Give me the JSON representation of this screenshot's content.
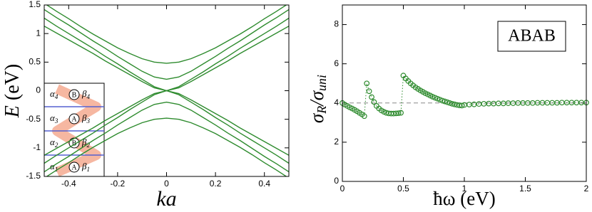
{
  "chart_data": [
    {
      "type": "line",
      "xlabel": "ka",
      "ylabel_parts": [
        "E",
        " (eV)"
      ],
      "x": [
        -0.5,
        -0.45,
        -0.4,
        -0.35,
        -0.3,
        -0.25,
        -0.2,
        -0.15,
        -0.1,
        -0.05,
        0,
        0.05,
        0.1,
        0.15,
        0.2,
        0.25,
        0.3,
        0.35,
        0.4,
        0.45,
        0.5
      ],
      "series": [
        {
          "color": "#2e8b2e",
          "values": [
            1.53,
            1.39,
            1.26,
            1.12,
            0.99,
            0.87,
            0.75,
            0.65,
            0.56,
            0.5,
            0.48,
            0.5,
            0.56,
            0.65,
            0.75,
            0.87,
            0.99,
            1.12,
            1.26,
            1.39,
            1.53
          ]
        },
        {
          "color": "#2e8b2e",
          "values": [
            1.42,
            1.28,
            1.15,
            1.01,
            0.87,
            0.74,
            0.6,
            0.47,
            0.34,
            0.24,
            0.2,
            0.24,
            0.34,
            0.47,
            0.6,
            0.74,
            0.87,
            1.01,
            1.15,
            1.28,
            1.42
          ]
        },
        {
          "color": "#2e8b2e",
          "values": [
            1.27,
            1.13,
            1.0,
            0.87,
            0.74,
            0.6,
            0.47,
            0.33,
            0.2,
            0.07,
            0,
            0.07,
            0.2,
            0.33,
            0.47,
            0.6,
            0.74,
            0.87,
            1.0,
            1.13,
            1.27
          ]
        },
        {
          "color": "#2e8b2e",
          "values": [
            1.13,
            1.01,
            0.89,
            0.77,
            0.65,
            0.52,
            0.4,
            0.28,
            0.16,
            0.05,
            0,
            0.05,
            0.16,
            0.28,
            0.4,
            0.52,
            0.65,
            0.77,
            0.89,
            1.01,
            1.13
          ]
        },
        {
          "color": "#2e8b2e",
          "values": [
            -1.13,
            -1.01,
            -0.89,
            -0.77,
            -0.65,
            -0.52,
            -0.4,
            -0.28,
            -0.16,
            -0.05,
            0,
            -0.05,
            -0.16,
            -0.28,
            -0.4,
            -0.52,
            -0.65,
            -0.77,
            -0.89,
            -1.01,
            -1.13
          ]
        },
        {
          "color": "#2e8b2e",
          "values": [
            -1.27,
            -1.13,
            -1.0,
            -0.87,
            -0.74,
            -0.6,
            -0.47,
            -0.33,
            -0.2,
            -0.07,
            0,
            -0.07,
            -0.2,
            -0.33,
            -0.47,
            -0.6,
            -0.74,
            -0.87,
            -1.0,
            -1.13,
            -1.27
          ]
        },
        {
          "color": "#2e8b2e",
          "values": [
            -1.42,
            -1.28,
            -1.15,
            -1.01,
            -0.87,
            -0.74,
            -0.6,
            -0.47,
            -0.34,
            -0.24,
            -0.2,
            -0.24,
            -0.34,
            -0.47,
            -0.6,
            -0.74,
            -0.87,
            -1.01,
            -1.15,
            -1.28,
            -1.42
          ]
        },
        {
          "color": "#2e8b2e",
          "values": [
            -1.53,
            -1.39,
            -1.26,
            -1.12,
            -0.99,
            -0.87,
            -0.75,
            -0.65,
            -0.56,
            -0.5,
            -0.48,
            -0.5,
            -0.56,
            -0.65,
            -0.75,
            -0.87,
            -0.99,
            -1.12,
            -1.26,
            -1.39,
            -1.53
          ]
        }
      ],
      "xlim": [
        -0.5,
        0.5
      ],
      "xticks": [
        -0.4,
        -0.2,
        0,
        0.2,
        0.4
      ],
      "ylim": [
        -1.5,
        1.5
      ],
      "yticks": [
        -1.5,
        -1,
        -0.5,
        0,
        0.5,
        1,
        1.5
      ],
      "inset": [
        {
          "left": "α",
          "left_sub": "4",
          "atom": "B",
          "right": "β",
          "right_sub": "4"
        },
        {
          "left": "α",
          "left_sub": "3",
          "atom": "A",
          "right": "β",
          "right_sub": "3"
        },
        {
          "left": "α",
          "left_sub": "2",
          "atom": "B",
          "right": "β",
          "right_sub": "2"
        },
        {
          "left": "α",
          "left_sub": "1",
          "atom": "A",
          "right": "β",
          "right_sub": "1"
        }
      ]
    },
    {
      "type": "scatter",
      "xlabel": "ħω (eV)",
      "ylabel_parts": [
        "σ",
        "R",
        "/σ",
        "uni"
      ],
      "annotation": "ABAB",
      "reference_line": 4,
      "color": "#2e8b2e",
      "x": [
        0,
        0.02,
        0.04,
        0.06,
        0.08,
        0.1,
        0.12,
        0.14,
        0.16,
        0.18,
        0.2,
        0.22,
        0.24,
        0.26,
        0.28,
        0.3,
        0.32,
        0.34,
        0.36,
        0.38,
        0.4,
        0.42,
        0.44,
        0.46,
        0.48,
        0.5,
        0.52,
        0.54,
        0.56,
        0.58,
        0.6,
        0.62,
        0.64,
        0.66,
        0.68,
        0.7,
        0.72,
        0.74,
        0.76,
        0.78,
        0.8,
        0.82,
        0.84,
        0.86,
        0.88,
        0.9,
        0.92,
        0.94,
        0.96,
        0.98,
        1.0,
        1.04,
        1.08,
        1.12,
        1.16,
        1.2,
        1.24,
        1.28,
        1.32,
        1.36,
        1.4,
        1.44,
        1.48,
        1.52,
        1.56,
        1.6,
        1.64,
        1.68,
        1.72,
        1.76,
        1.8,
        1.84,
        1.88,
        1.92,
        1.96,
        2.0
      ],
      "values": [
        4.0,
        3.92,
        3.85,
        3.78,
        3.72,
        3.65,
        3.58,
        3.5,
        3.42,
        3.33,
        5.0,
        4.6,
        4.3,
        4.05,
        3.85,
        3.72,
        3.62,
        3.55,
        3.5,
        3.47,
        3.46,
        3.46,
        3.47,
        3.48,
        3.5,
        5.4,
        5.25,
        5.12,
        5.0,
        4.9,
        4.8,
        4.72,
        4.64,
        4.57,
        4.5,
        4.44,
        4.38,
        4.32,
        4.27,
        4.22,
        4.17,
        4.12,
        4.08,
        4.04,
        4.0,
        3.96,
        3.93,
        3.9,
        3.88,
        3.87,
        3.9,
        3.92,
        3.93,
        3.95,
        3.96,
        3.97,
        3.97,
        3.98,
        3.98,
        3.99,
        3.99,
        4.0,
        4.0,
        4.0,
        4.0,
        4.01,
        4.01,
        4.01,
        4.01,
        4.01,
        4.02,
        4.02,
        4.02,
        4.02,
        4.02,
        4.02
      ],
      "xlim": [
        0,
        2
      ],
      "xticks": [
        0,
        0.5,
        1,
        1.5,
        2
      ],
      "ylim": [
        0,
        9
      ],
      "yticks": [
        0,
        2,
        4,
        6,
        8
      ]
    }
  ]
}
